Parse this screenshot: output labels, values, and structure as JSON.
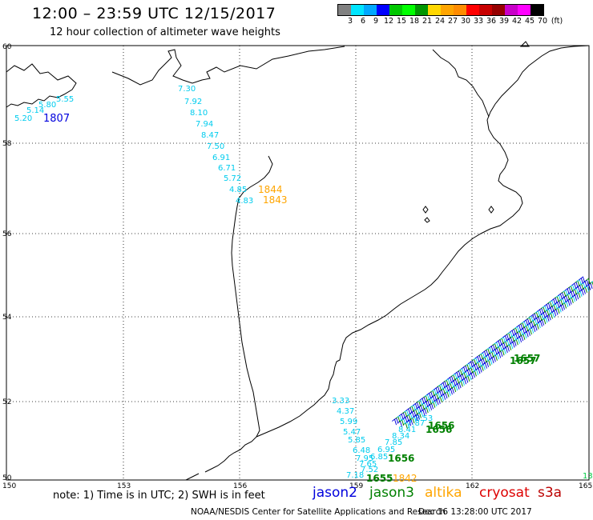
{
  "header": {
    "title": "12:00 – 23:59 UTC 12/15/2017",
    "subtitle": "12 hour collection of altimeter wave heights"
  },
  "legend": {
    "colors": [
      "#808080",
      "#00e5ff",
      "#00a8ff",
      "#0000ff",
      "#00c800",
      "#00ff00",
      "#009600",
      "#ffd700",
      "#ffa500",
      "#ff8c00",
      "#ff0000",
      "#c80000",
      "#960000",
      "#c800c8",
      "#ff00ff",
      "#000000"
    ],
    "tick_labels": [
      "3",
      "6",
      "9",
      "12",
      "15",
      "18",
      "21",
      "24",
      "27",
      "30",
      "33",
      "36",
      "39",
      "42",
      "45",
      "70",
      "(ft)"
    ]
  },
  "axes": {
    "x_labels": [
      "150",
      "153",
      "156",
      "159",
      "162",
      "165"
    ],
    "y_labels": [
      "60",
      "58",
      "56",
      "54",
      "52",
      "50"
    ]
  },
  "footer": {
    "note": "note: 1) Time is in UTC; 2) SWH is in feet",
    "satellites": [
      {
        "name": "jason2",
        "color": "#0000dd"
      },
      {
        "name": "jason3",
        "color": "#008000"
      },
      {
        "name": "altika",
        "color": "#ffa500"
      },
      {
        "name": "cryosat",
        "color": "#dd0000"
      },
      {
        "name": "s3a",
        "color": "#bb0000"
      }
    ],
    "credit": "NOAA/NESDIS Center for Satellite Applications and Research",
    "timestamp": "Dec 16 13:28:00 UTC 2017"
  },
  "colors": {
    "cyan_track": "#00ccee",
    "jason2": "#0000dd",
    "jason3": "#008000",
    "altika": "#ffa500"
  },
  "map_labels": {
    "tl_values": [
      "5.55",
      "5.80",
      "5.14",
      "5.20"
    ],
    "tl_time": "1807",
    "track_a_values": [
      "7.30",
      "7.92",
      "8.10",
      "7.94",
      "8.47",
      "7.50",
      "6.91",
      "6.71",
      "5.72",
      "4.85",
      "4.83"
    ],
    "altika_times": [
      "1844",
      "1843"
    ],
    "track_b_values": [
      "3.33",
      "4.37",
      "5.99",
      "5.47",
      "5.85",
      "6.48",
      "7.95",
      "7.65",
      "7.52",
      "7.18"
    ],
    "track_c_values": [
      "8.53",
      "7.87",
      "8.41",
      "8.34",
      "7.85",
      "6.95",
      "6.85"
    ],
    "jason3_times": [
      "1656",
      "1656",
      "1656",
      "1655",
      "1657",
      "1657"
    ],
    "altika_bottom_time": "1842",
    "edge_value": "13"
  }
}
